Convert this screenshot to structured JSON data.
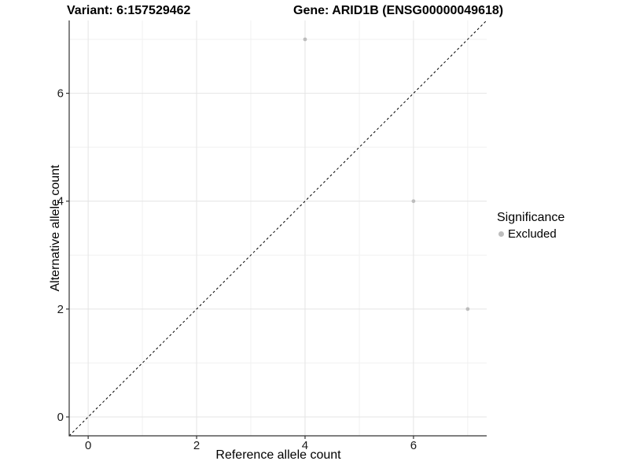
{
  "figure": {
    "title_left": "Variant: 6:157529462",
    "title_right": "Gene: ARID1B (ENSG00000049618)"
  },
  "chart_data": {
    "type": "scatter",
    "title": "Variant: 6:157529462   Gene: ARID1B (ENSG00000049618)",
    "xlabel": "Reference allele count",
    "ylabel": "Alternative allele count",
    "xlim": [
      -0.35,
      7.35
    ],
    "ylim": [
      -0.35,
      7.35
    ],
    "x_ticks": [
      0,
      2,
      4,
      6
    ],
    "y_ticks": [
      0,
      2,
      4,
      6
    ],
    "x_minor_ticks": [
      1,
      3,
      5,
      7
    ],
    "y_minor_ticks": [
      1,
      3,
      5,
      7
    ],
    "grid": true,
    "series": [
      {
        "name": "Excluded",
        "color": "#bdbdbd",
        "points": [
          {
            "x": 4,
            "y": 7
          },
          {
            "x": 6,
            "y": 4
          },
          {
            "x": 7,
            "y": 2
          }
        ]
      }
    ],
    "reference_line": {
      "slope": 1,
      "intercept": 0,
      "linetype": "dashed",
      "color": "#000000"
    },
    "legend": {
      "title": "Significance",
      "position": "right",
      "entries": [
        {
          "label": "Excluded",
          "color": "#bdbdbd"
        }
      ]
    },
    "colors": {
      "panel_background": "#ffffff",
      "grid_major": "#e4e4e4",
      "grid_minor": "#f1f1f1",
      "axis_line": "#333333",
      "tick_label": "#1a1a1a"
    }
  }
}
